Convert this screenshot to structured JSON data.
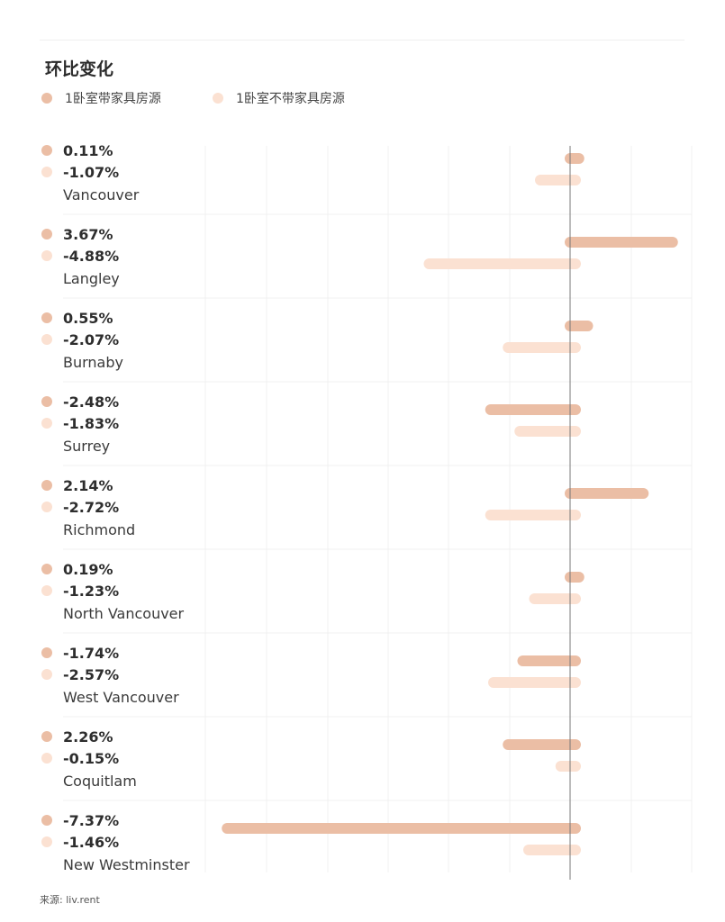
{
  "title": "环比变化",
  "source": "来源: liv.rent",
  "colors": {
    "series1": "#ebbea5",
    "series2": "#fbe1d2",
    "axis": "#777777",
    "grid": "#f1f1f1"
  },
  "chart_data": {
    "type": "bar",
    "orientation": "horizontal",
    "title": "环比变化",
    "xlabel": "",
    "ylabel": "",
    "grid": true,
    "legend_position": "top-left",
    "categories": [
      "Vancouver",
      "Langley",
      "Burnaby",
      "Surrey",
      "Richmond",
      "North Vancouver",
      "West Vancouver",
      "Coquitlam",
      "New Westminster"
    ],
    "series": [
      {
        "name": "1卧室带家具房源",
        "values": [
          0.11,
          3.67,
          0.55,
          -2.48,
          2.14,
          0.19,
          -1.74,
          2.26,
          -7.37
        ],
        "labels": [
          "0.11%",
          "3.67%",
          "0.55%",
          "-2.48%",
          "2.14%",
          "0.19%",
          "-1.74%",
          "2.26%",
          "-7.37%"
        ],
        "bar_value": [
          0.3,
          3.5,
          0.6,
          -2.9,
          2.5,
          0.3,
          -1.8,
          -2.3,
          -11.9
        ]
      },
      {
        "name": "1卧室不带家具房源",
        "values": [
          -1.07,
          -4.88,
          -2.07,
          -1.83,
          -2.72,
          -1.23,
          -2.57,
          -0.15,
          -1.46
        ],
        "labels": [
          "-1.07%",
          "-4.88%",
          "-2.07%",
          "-1.83%",
          "-2.72%",
          "-1.23%",
          "-2.57%",
          "-0.15%",
          "-1.46%"
        ],
        "bar_value": [
          -1.2,
          -5.0,
          -2.3,
          -1.9,
          -2.9,
          -1.4,
          -2.8,
          -0.5,
          -1.6
        ]
      }
    ],
    "xlim": [
      -12.6,
      4.2
    ]
  }
}
